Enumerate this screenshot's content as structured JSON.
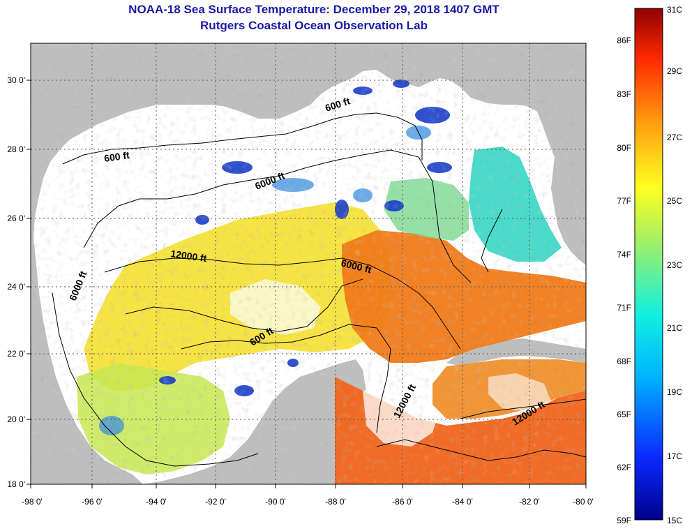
{
  "header": {
    "title": "NOAA-18 Sea Surface Temperature:  December 29, 2018 1407 GMT",
    "subtitle": "Rutgers Coastal Ocean Observation Lab"
  },
  "map": {
    "lon_ticks": [
      "-98 0'",
      "-96 0'",
      "-94 0'",
      "-92 0'",
      "-90 0'",
      "-88 0'",
      "-86 0'",
      "-84 0'",
      "-82 0'",
      "-80 0'"
    ],
    "lat_ticks": [
      "30 0'",
      "28 0'",
      "26 0'",
      "24 0'",
      "22 0'",
      "20 0'",
      "18 0'"
    ],
    "contour_labels": [
      "600 ft",
      "600 ft",
      "6000 ft",
      "12000 ft",
      "6000 ft",
      "6000 ft",
      "600 ft",
      "12000 ft",
      "12000 ft"
    ]
  },
  "colorbar": {
    "fahrenheit_labels": [
      "86F",
      "83F",
      "80F",
      "77F",
      "74F",
      "71F",
      "68F",
      "65F",
      "62F",
      "59F"
    ],
    "celsius_labels": [
      "31C",
      "29C",
      "27C",
      "25C",
      "23C",
      "21C",
      "19C",
      "17C",
      "15C"
    ]
  },
  "colors": {
    "title": "#1a1aa6",
    "land": "#bebebe",
    "no_data": "#ffffff",
    "warm": "#f06a10",
    "mild": "#f5e23a",
    "cool": "#3fd6c8",
    "cold": "#1030c0"
  }
}
